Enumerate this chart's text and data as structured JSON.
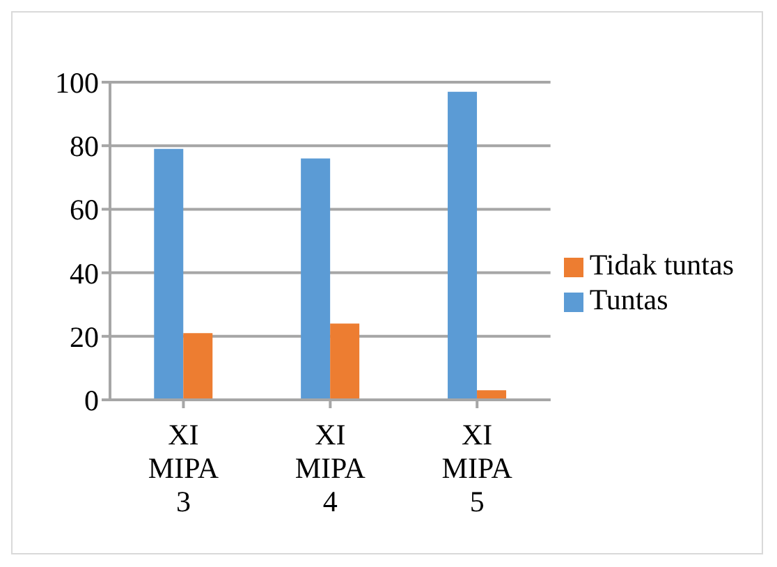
{
  "chart_data": {
    "type": "bar",
    "categories": [
      "XI MIPA 3",
      "XI MIPA 4",
      "XI MIPA 5"
    ],
    "series": [
      {
        "name": "Tuntas",
        "color": "#5b9bd5",
        "values": [
          79,
          76,
          97
        ]
      },
      {
        "name": "Tidak tuntas",
        "color": "#ed7d31",
        "values": [
          21,
          24,
          3
        ]
      }
    ],
    "ylim": [
      0,
      100
    ],
    "yticks": [
      0,
      20,
      40,
      60,
      80,
      100
    ],
    "grid": "y",
    "legend": "right"
  }
}
